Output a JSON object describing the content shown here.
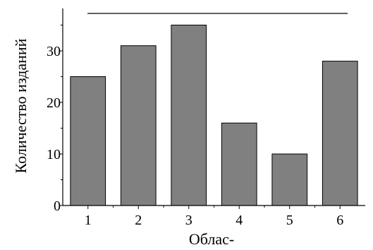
{
  "chart_data": {
    "type": "bar",
    "categories": [
      "1",
      "2",
      "3",
      "4",
      "5",
      "6"
    ],
    "values": [
      25,
      31,
      35,
      16,
      10,
      28
    ],
    "xlabel": "Облас-",
    "ylabel": "Количество изданий",
    "ylim": [
      0,
      37
    ],
    "yticks": [
      "0",
      "10",
      "20",
      "30"
    ],
    "grid": false,
    "bar_color": "#808080",
    "bar_edge_color": "#000000"
  }
}
